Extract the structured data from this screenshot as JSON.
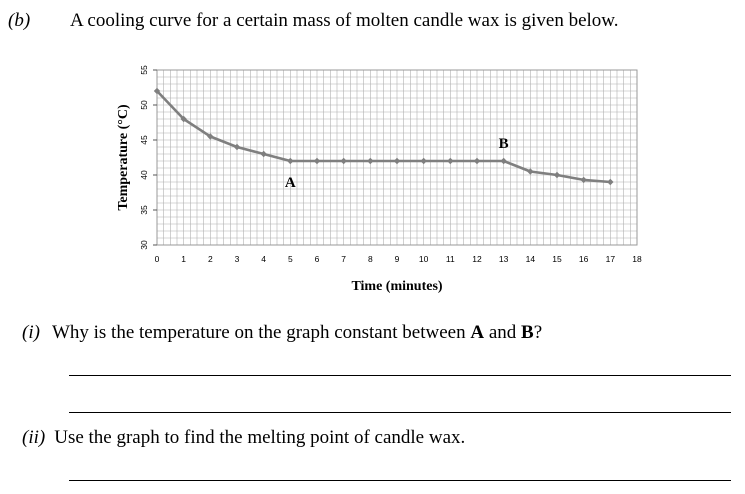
{
  "question": {
    "part_b_label": "(b)",
    "part_b_text": "A cooling curve for a certain mass of molten candle wax is given below.",
    "sub_i_label": "(i)",
    "sub_i_text_1": "Why is the temperature on the graph constant between ",
    "sub_i_bold_a": "A",
    "sub_i_text_2": " and ",
    "sub_i_bold_b": "B",
    "sub_i_text_3": "?",
    "sub_ii_label": "(ii)",
    "sub_ii_text": "Use the graph to find the melting point of candle wax."
  },
  "chart_data": {
    "type": "line",
    "xlabel": "Time (minutes)",
    "ylabel": "Temperature (°C)",
    "xlim": [
      0,
      18
    ],
    "ylim": [
      30,
      55
    ],
    "x_ticks": [
      0,
      1,
      2,
      3,
      4,
      5,
      6,
      7,
      8,
      9,
      10,
      11,
      12,
      13,
      14,
      15,
      16,
      17,
      18
    ],
    "y_ticks": [
      30,
      35,
      40,
      45,
      50,
      55
    ],
    "grid": true,
    "colors": {
      "line": "#7f7f7f",
      "grid": "#b0b0b0"
    },
    "series": [
      {
        "x": [
          0,
          1,
          2,
          3,
          4,
          5,
          6,
          7,
          8,
          9,
          10,
          11,
          12,
          13,
          14,
          15,
          16,
          17
        ],
        "y": [
          52,
          48,
          45.5,
          44,
          43,
          42,
          42,
          42,
          42,
          42,
          42,
          42,
          42,
          42,
          40.5,
          40,
          39.3,
          39
        ]
      }
    ],
    "annotations": [
      {
        "text": "A",
        "x": 5,
        "y": 42
      },
      {
        "text": "B",
        "x": 13,
        "y": 42
      }
    ]
  }
}
